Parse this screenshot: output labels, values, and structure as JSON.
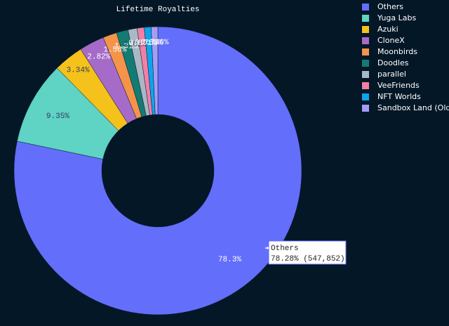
{
  "chart_data": {
    "type": "pie",
    "title": "Lifetime Royalties",
    "hole": true,
    "categories": [
      "Others",
      "Yuga Labs",
      "Azuki",
      "CloneX",
      "Moonbirds",
      "Doodles",
      "parallel",
      "VeeFriends",
      "NFT Worlds",
      "Sandbox Land (Old)"
    ],
    "values": [
      78.28,
      9.35,
      3.34,
      2.82,
      1.56,
      1.31,
      1.02,
      0.801,
      0.763,
      0.748
    ],
    "value_labels": [
      "78.3%",
      "9.35%",
      "3.34%",
      "2.82%",
      "1.56%",
      "1.31%",
      "1.02%",
      "0.801%",
      "0.763%",
      "0.748%"
    ],
    "colors": [
      "#636efa",
      "#5fd3c4",
      "#f5c11b",
      "#a66bc8",
      "#f4944a",
      "#137b73",
      "#a9b8c4",
      "#f27fa6",
      "#0ca5ec",
      "#a49cf5"
    ],
    "direction": "clockwise",
    "hover": {
      "label": "Others",
      "text": "78.28% (547,852)"
    }
  }
}
